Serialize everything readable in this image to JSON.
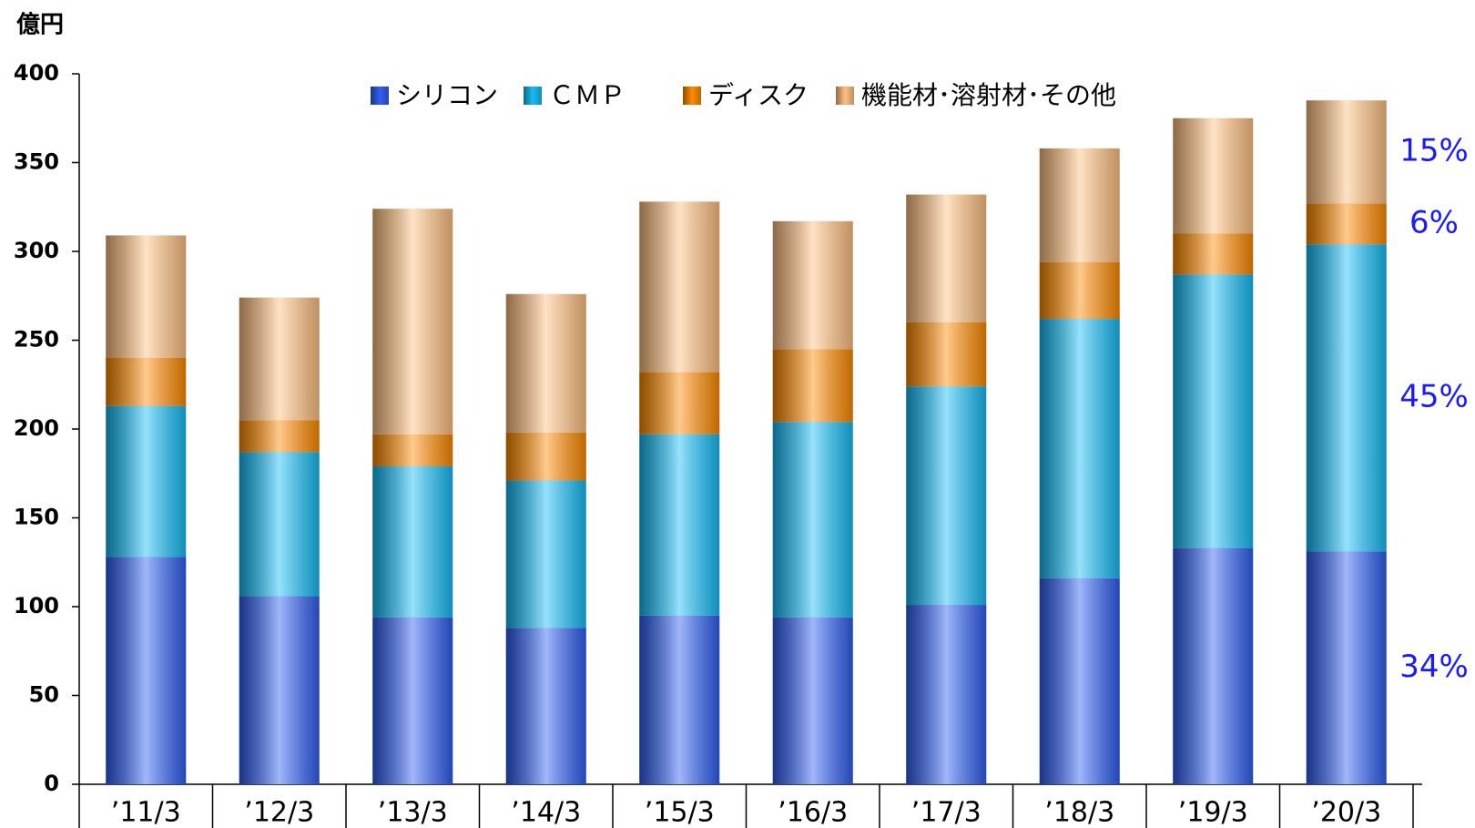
{
  "chart_data": {
    "type": "stacked_bar",
    "y_axis_label": "億円",
    "categories": [
      "’11/3",
      "’12/3",
      "’13/3",
      "’14/3",
      "’15/3",
      "’16/3",
      "’17/3",
      "’18/3",
      "’19/3",
      "’20/3"
    ],
    "series": [
      {
        "name": "シリコン",
        "color": "#2f5ff2",
        "values": [
          128,
          106,
          94,
          88,
          95,
          94,
          101,
          116,
          133,
          131
        ]
      },
      {
        "name": "ＣＭＰ",
        "color": "#16bdf7",
        "values": [
          85,
          81,
          85,
          83,
          102,
          110,
          123,
          146,
          154,
          173
        ]
      },
      {
        "name": "ディスク",
        "color": "#ff8a00",
        "values": [
          27,
          18,
          18,
          27,
          35,
          41,
          36,
          32,
          23,
          23
        ]
      },
      {
        "name": "機能材･溶射材･その他",
        "color": "#ffc080",
        "values": [
          69,
          69,
          127,
          78,
          96,
          72,
          72,
          64,
          65,
          58
        ]
      }
    ],
    "annotations": [
      "34%",
      "45%",
      "6%",
      "15%"
    ],
    "annotation_color": "#1a1aff",
    "ylim": [
      0,
      400
    ],
    "yticks": [
      0,
      50,
      100,
      150,
      200,
      250,
      300,
      350,
      400
    ]
  }
}
